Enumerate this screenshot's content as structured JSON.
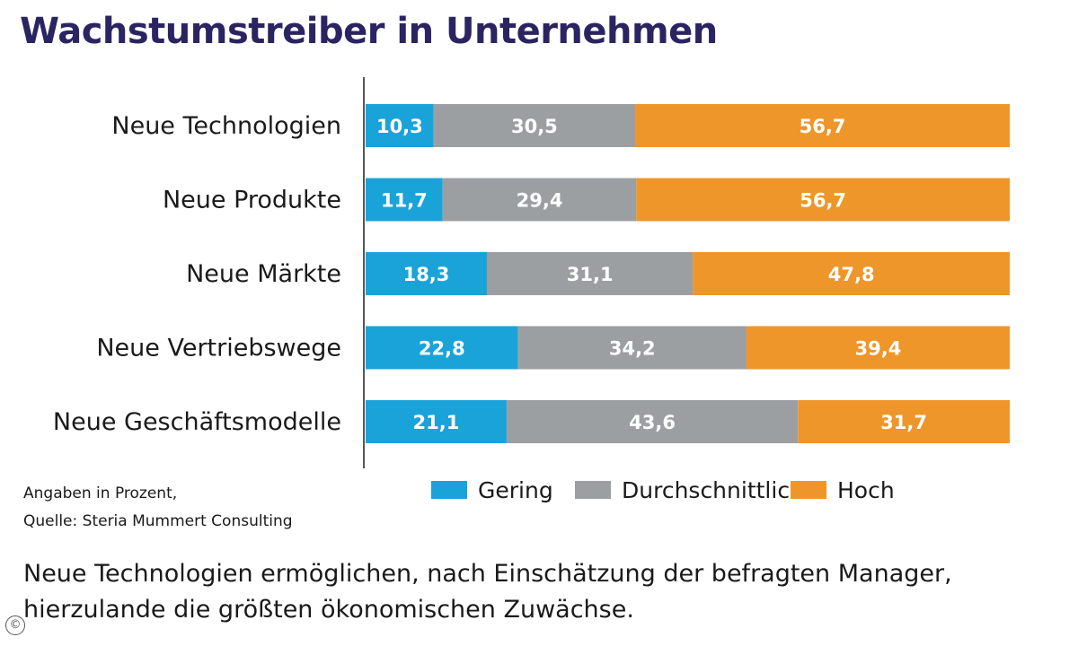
{
  "title": "Wachstumstreiber in Unternehmen",
  "notes": {
    "line1": "Angaben in Prozent,",
    "line2": "Quelle: Steria Mummert Consulting"
  },
  "caption": "Neue Technologien ermöglichen, nach Einschätzung der befragten Manager, hierzulande die größten ökonomischen Zuwächse.",
  "copyright_symbol": "©",
  "colors": {
    "gering": "#1aa3d9",
    "durchschnittlich": "#9c9fa2",
    "hoch": "#ee962a",
    "title": "#2b2462"
  },
  "chart_data": {
    "type": "bar",
    "orientation": "horizontal",
    "stacked": true,
    "title": "Wachstumstreiber in Unternehmen",
    "categories": [
      "Neue Technologien",
      "Neue Produkte",
      "Neue Märkte",
      "Neue Vertriebswege",
      "Neue Geschäftsmodelle"
    ],
    "value_labels": [
      [
        "10,3",
        "11,7",
        "18,3",
        "22,8",
        "21,1"
      ],
      [
        "30,5",
        "29,4",
        "31,1",
        "34,2",
        "43,6"
      ],
      [
        "56,7",
        "56,7",
        "47,8",
        "39,4",
        "31,7"
      ]
    ],
    "series": [
      {
        "name": "Gering",
        "values": [
          10.3,
          11.7,
          18.3,
          22.8,
          21.1
        ],
        "color": "#1aa3d9"
      },
      {
        "name": "Durchschnittlich",
        "values": [
          30.5,
          29.4,
          31.1,
          34.2,
          43.6
        ],
        "color": "#9c9fa2"
      },
      {
        "name": "Hoch",
        "values": [
          56.7,
          56.7,
          47.8,
          39.4,
          31.7
        ],
        "color": "#ee962a"
      }
    ],
    "legend_position": "bottom",
    "grid": false
  }
}
